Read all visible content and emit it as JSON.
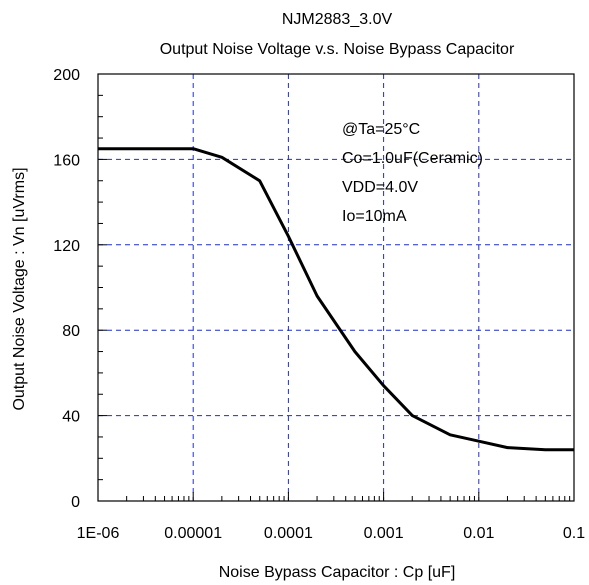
{
  "chart_data": {
    "type": "line",
    "title": "NJM2883_3.0V",
    "subtitle": "Output Noise Voltage v.s. Noise Bypass Capacitor",
    "xlabel": "Noise Bypass Capacitor : Cp [uF]",
    "ylabel": "Output Noise Voltage : Vn [uVrms]",
    "xscale": "log",
    "xlim": [
      1e-06,
      0.1
    ],
    "ylim": [
      0,
      200
    ],
    "x_ticks": [
      1e-06,
      1e-05,
      0.0001,
      0.001,
      0.01,
      0.1
    ],
    "x_tick_labels": [
      "1E-06",
      "0.00001",
      "0.0001",
      "0.001",
      "0.01",
      "0.1"
    ],
    "y_ticks": [
      0,
      40,
      80,
      120,
      160,
      200
    ],
    "y_tick_labels": [
      "0",
      "40",
      "80",
      "120",
      "160",
      "200"
    ],
    "grid": true,
    "annotations": [
      "@Ta=25°C",
      "Co=1.0uF(Ceramic)",
      "VDD=4.0V",
      "Io=10mA"
    ],
    "series": [
      {
        "x": [
          1e-06,
          2e-06,
          5e-06,
          1e-05,
          2e-05,
          5e-05,
          0.0001,
          0.0002,
          0.0005,
          0.001,
          0.002,
          0.005,
          0.01,
          0.02,
          0.05,
          0.1
        ],
        "values": [
          165,
          165,
          165,
          165,
          161,
          150,
          124,
          96,
          70,
          54,
          40,
          31,
          28,
          25,
          24,
          24
        ]
      }
    ]
  }
}
